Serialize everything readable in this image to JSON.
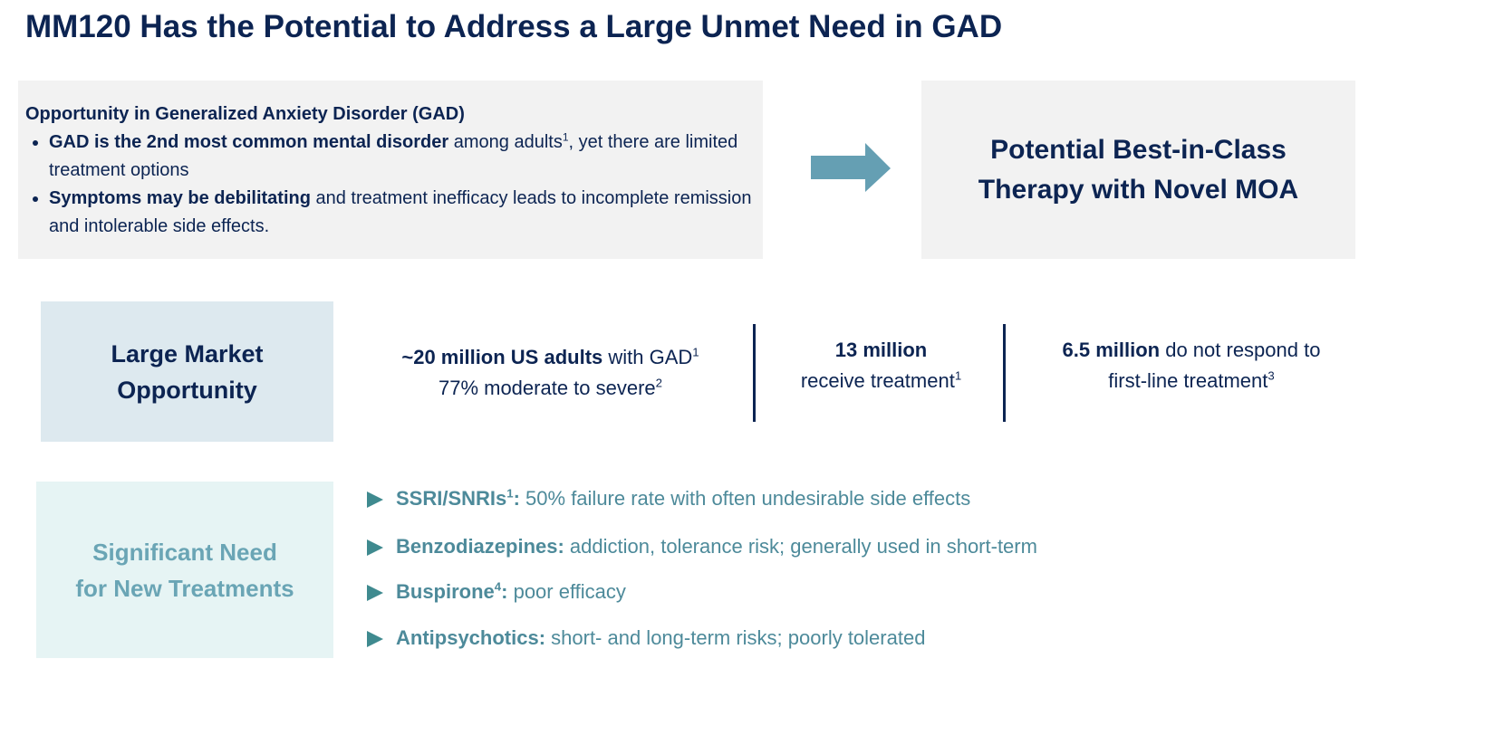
{
  "title": "MM120 Has the Potential to Address a Large Unmet Need in GAD",
  "opportunity": {
    "heading": "Opportunity in Generalized Anxiety Disorder (GAD)",
    "bullets": [
      [
        {
          "t": "GAD is the 2nd most common mental disorder",
          "b": true
        },
        {
          "t": " among adults"
        },
        {
          "t": "1",
          "sup": true
        },
        {
          "t": ", yet there are limited treatment options"
        }
      ],
      [
        {
          "t": "Symptoms may be debilitating",
          "b": true
        },
        {
          "t": " and treatment inefficacy leads to incomplete remission and intolerable side effects."
        }
      ]
    ]
  },
  "callout": [
    "Potential Best-in-Class",
    "Therapy with Novel MOA"
  ],
  "market": {
    "label": [
      "Large Market",
      "Opportunity"
    ],
    "stats": [
      [
        [
          {
            "t": "~20 million US adults",
            "b": true
          },
          {
            "t": " with GAD"
          },
          {
            "t": "1",
            "sup": true
          }
        ],
        [
          {
            "t": "77% moderate to severe"
          },
          {
            "t": "2",
            "sup": true
          }
        ]
      ],
      [
        [
          {
            "t": "13 million",
            "b": true
          }
        ],
        [
          {
            "t": "receive treatment"
          },
          {
            "t": "1",
            "sup": true
          }
        ]
      ],
      [
        [
          {
            "t": "6.5 million",
            "b": true
          },
          {
            "t": " do not respond to"
          }
        ],
        [
          {
            "t": "first-line treatment"
          },
          {
            "t": "3",
            "sup": true
          }
        ]
      ]
    ]
  },
  "need": {
    "label": [
      "Significant Need",
      "for New Treatments"
    ],
    "items": [
      [
        {
          "t": "SSRI/SNRIs",
          "b": true
        },
        {
          "t": "1",
          "sup": true,
          "b": true
        },
        {
          "t": ":",
          "b": true
        },
        {
          "t": " 50% failure rate with often undesirable side effects"
        }
      ],
      [
        {
          "t": "Benzodiazepines:",
          "b": true
        },
        {
          "t": " addiction, tolerance risk; generally used in short-term"
        }
      ],
      [
        {
          "t": "Buspirone",
          "b": true
        },
        {
          "t": "4",
          "sup": true,
          "b": true
        },
        {
          "t": ":",
          "b": true
        },
        {
          "t": " poor efficacy"
        }
      ],
      [
        {
          "t": "Antipsychotics:",
          "b": true
        },
        {
          "t": " short- and long-term risks; poorly tolerated"
        }
      ]
    ]
  }
}
